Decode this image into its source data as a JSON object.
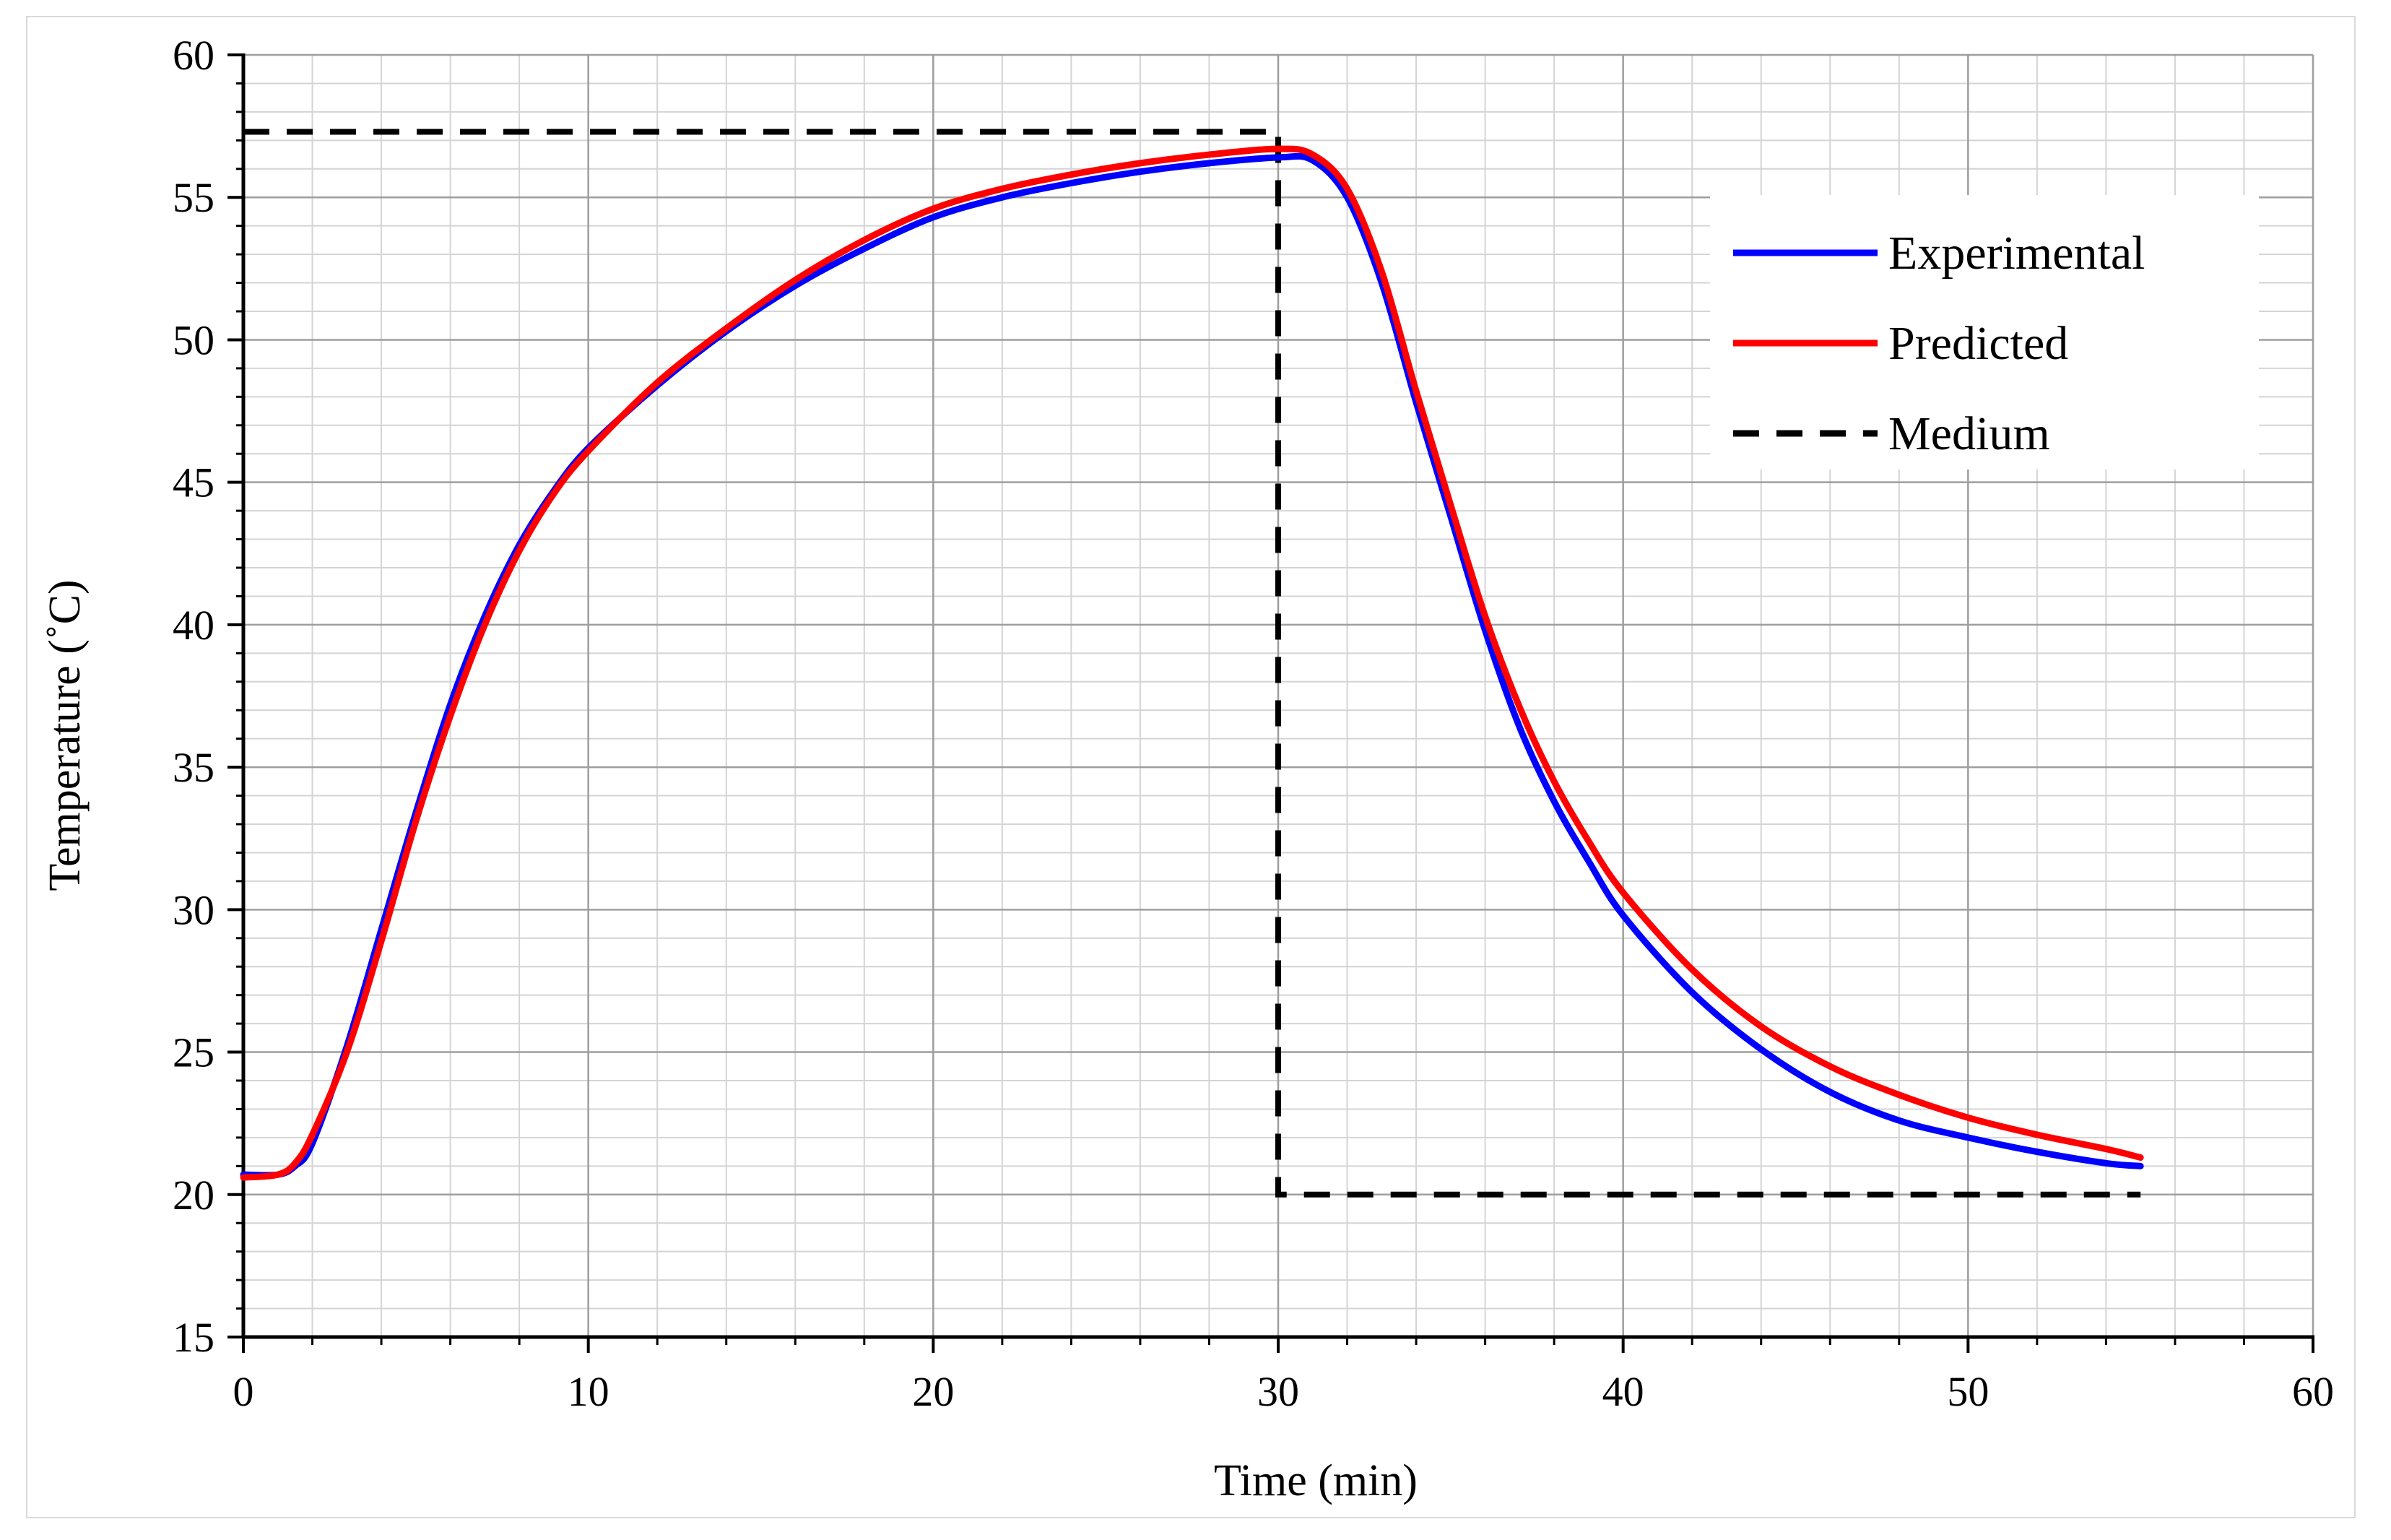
{
  "chart_data": {
    "type": "line",
    "title": "",
    "xlabel": "Time  (min)",
    "ylabel": "Temperature  (˚C)",
    "xlim": [
      0,
      60
    ],
    "ylim": [
      15,
      60
    ],
    "x_major_ticks": [
      0,
      10,
      20,
      30,
      40,
      50,
      60
    ],
    "y_major_ticks": [
      15,
      20,
      25,
      30,
      35,
      40,
      45,
      50,
      55,
      60
    ],
    "x_tick_labels": [
      "0",
      "10",
      "20",
      "30",
      "40",
      "50",
      "60"
    ],
    "y_tick_labels": [
      "15",
      "20",
      "25",
      "30",
      "35",
      "40",
      "45",
      "50",
      "55",
      "60"
    ],
    "x_minor_step": 2,
    "y_minor_step": 1,
    "grid": true,
    "legend_position": "top-right",
    "series": [
      {
        "name": "Experimental",
        "color": "#0000ff",
        "style": "solid",
        "x": [
          0,
          1,
          1.5,
          2,
          3,
          4,
          5,
          6,
          7,
          8,
          9,
          10,
          12,
          14,
          16,
          18,
          20,
          22,
          24,
          26,
          28,
          30,
          31,
          32,
          33,
          34,
          35,
          36,
          37,
          38,
          39,
          40,
          42,
          44,
          46,
          48,
          50,
          52,
          54,
          55
        ],
        "y": [
          20.7,
          20.7,
          21.0,
          21.8,
          25.2,
          29.3,
          33.4,
          37.2,
          40.3,
          42.8,
          44.7,
          46.2,
          48.4,
          50.3,
          51.9,
          53.2,
          54.3,
          55.0,
          55.5,
          55.9,
          56.2,
          56.4,
          56.3,
          55.0,
          52.0,
          47.8,
          43.8,
          39.8,
          36.4,
          33.8,
          31.7,
          29.8,
          27.1,
          25.1,
          23.6,
          22.6,
          22.0,
          21.5,
          21.1,
          21.0
        ]
      },
      {
        "name": "Predicted",
        "color": "#ff0000",
        "style": "solid",
        "x": [
          0,
          1,
          1.5,
          2,
          3,
          4,
          5,
          6,
          7,
          8,
          9,
          10,
          12,
          14,
          16,
          18,
          20,
          22,
          24,
          26,
          28,
          30,
          31,
          32,
          33,
          34,
          35,
          36,
          37,
          38,
          39,
          40,
          42,
          44,
          46,
          48,
          50,
          52,
          54,
          55
        ],
        "y": [
          20.6,
          20.7,
          21.1,
          22.1,
          25.0,
          28.9,
          33.1,
          36.8,
          40.0,
          42.6,
          44.6,
          46.1,
          48.5,
          50.4,
          52.1,
          53.5,
          54.6,
          55.3,
          55.8,
          56.2,
          56.5,
          56.7,
          56.5,
          55.3,
          52.4,
          48.2,
          44.2,
          40.3,
          37.1,
          34.5,
          32.4,
          30.6,
          27.9,
          25.9,
          24.5,
          23.5,
          22.7,
          22.1,
          21.6,
          21.3
        ]
      },
      {
        "name": "Medium",
        "color": "#000000",
        "style": "dashed",
        "x": [
          0,
          30,
          30,
          55
        ],
        "y": [
          57.3,
          57.3,
          20.0,
          20.0
        ]
      }
    ]
  }
}
